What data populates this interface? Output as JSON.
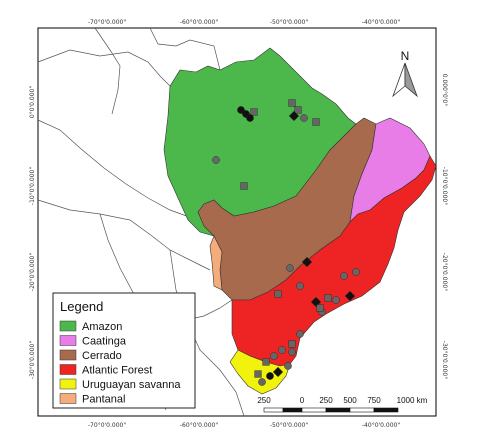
{
  "map": {
    "ticks_top": [
      "-70°0'0.000\"",
      "-60°0'0.000\"",
      "-50°0'0.000\"",
      "-40°0'0.000\""
    ],
    "ticks_bottom": [
      "-70°0'0.000\"",
      "-60°0'0.000\"",
      "-50°0'0.000\"",
      "-40°0'0.000\""
    ],
    "ticks_left": [
      "0°0'0.000\"",
      "-10°0'0.000\"",
      "-20°0'0.000\"",
      "-30°0'0.000\""
    ],
    "ticks_right": [
      "0.000°0'0°",
      "-10°0'0.000°",
      "-20°0'0.000°",
      "-30°0'0.000°"
    ]
  },
  "legend": {
    "title": "Legend",
    "items": [
      {
        "label": "Amazon",
        "color": "#4cb84c"
      },
      {
        "label": "Caatinga",
        "color": "#e87de8"
      },
      {
        "label": "Cerrado",
        "color": "#a86a4c"
      },
      {
        "label": "Atlantic Forest",
        "color": "#ee2424"
      },
      {
        "label": "Uruguayan savanna",
        "color": "#f2f20f"
      },
      {
        "label": "Pantanal",
        "color": "#f4ad7a"
      }
    ]
  },
  "north_arrow": {
    "label": "N"
  },
  "scale_bar": {
    "labels": [
      "250",
      "0",
      "250",
      "500",
      "750",
      "1000 km"
    ]
  },
  "colors": {
    "border": "#4a4a4a",
    "point_gray": "#666666",
    "point_black": "#111111"
  }
}
